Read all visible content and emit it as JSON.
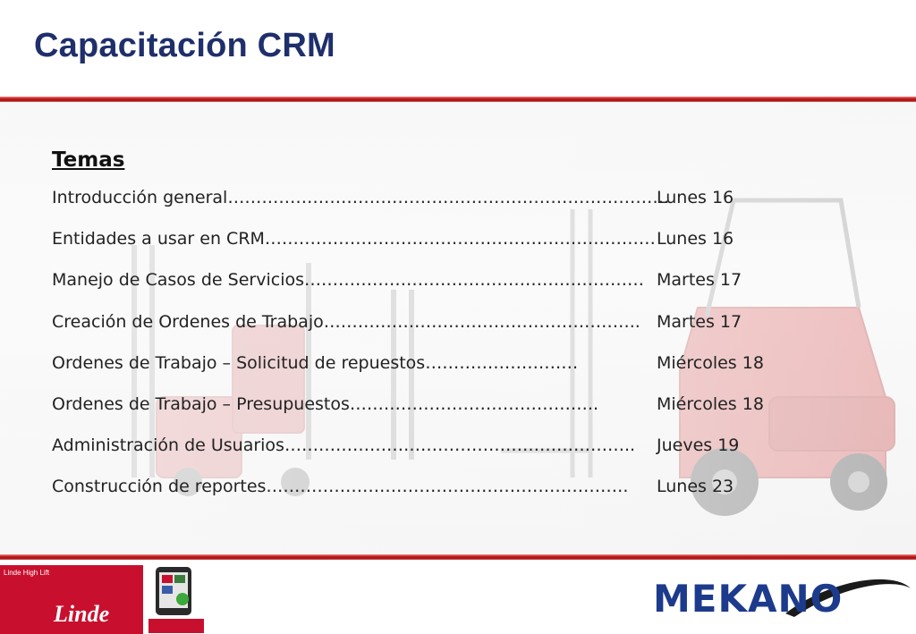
{
  "slide": {
    "title": "Capacitación CRM"
  },
  "topics": {
    "heading": "Temas",
    "items": [
      {
        "text": "Introducción general ",
        "dots": "……………………………………………………………………",
        "day": "Lunes 16"
      },
      {
        "text": "Entidades a usar en CRM",
        "dots": "……………………………………………………………",
        "day": "Lunes 16"
      },
      {
        "text": "Manejo de Casos de Servicios",
        "dots": "……………………………………………………",
        "day": "Martes 17"
      },
      {
        "text": "Creación de Ordenes de Trabajo ",
        "dots": "………………………………………………..",
        "day": "Martes 17"
      },
      {
        "text": "Ordenes de Trabajo – Solicitud de repuestos ",
        "dots": "………………………",
        "day": "Miércoles 18"
      },
      {
        "text": "Ordenes de Trabajo – Presupuestos",
        "dots": "……………………………………..",
        "day": "Miércoles 18"
      },
      {
        "text": "Administración de Usuarios",
        "dots": "……………………………………………………..",
        "day": "Jueves 19"
      },
      {
        "text": "Construcción de reportes  ",
        "dots": "……………………………………………………….",
        "day": "Lunes 23"
      }
    ]
  },
  "footer": {
    "left_tag": "Linde High Lift",
    "left_brand": "Linde",
    "right_brand": "MEKANO"
  },
  "colors": {
    "title": "#1f2f6b",
    "rule": "#c41c1c",
    "linde_red": "#c8102e",
    "mekano_blue": "#1d3b8c"
  },
  "icons": [
    "forklift-illustration",
    "tablet-icon",
    "mekano-swoosh"
  ]
}
